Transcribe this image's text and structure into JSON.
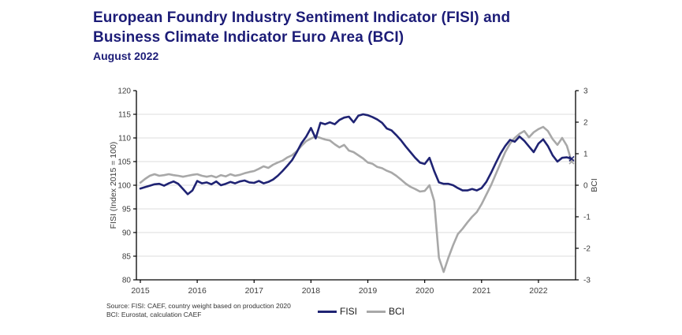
{
  "header": {
    "title_line1": "European Foundry Industry Sentiment Indicator (FISI) and",
    "title_line2": "Business Climate Indicator Euro Area (BCI)",
    "subtitle": "August 2022"
  },
  "chart_data": {
    "type": "line",
    "x_unit": "month",
    "x_start": "2015-01",
    "x_end": "2022-08",
    "x_tick_labels": [
      "2015",
      "2016",
      "2017",
      "2018",
      "2019",
      "2020",
      "2021",
      "2022"
    ],
    "grid": "horizontal",
    "grid_color": "#dcdcdc",
    "axis_color": "#000000",
    "left_axis": {
      "label": "FISI (Index 2015 = 100)",
      "min": 80,
      "max": 120,
      "step": 5
    },
    "right_axis": {
      "label": "BCI",
      "min": -3,
      "max": 3,
      "step": 1
    },
    "legend_position": "bottom",
    "series": [
      {
        "name": "FISI",
        "axis": "left",
        "color": "#1f2373",
        "values": [
          99.3,
          99.6,
          99.9,
          100.2,
          100.3,
          99.9,
          100.4,
          100.8,
          100.3,
          99.2,
          98.1,
          98.9,
          100.9,
          100.4,
          100.6,
          100.2,
          100.8,
          100.0,
          100.3,
          100.7,
          100.4,
          100.8,
          101.0,
          100.6,
          100.5,
          100.9,
          100.4,
          100.7,
          101.2,
          102.0,
          103.0,
          104.1,
          105.3,
          107.0,
          108.9,
          110.3,
          112.1,
          109.9,
          113.2,
          112.9,
          113.3,
          112.9,
          113.8,
          114.3,
          114.5,
          113.3,
          114.7,
          115.0,
          114.8,
          114.4,
          113.9,
          113.2,
          112.0,
          111.6,
          110.6,
          109.5,
          108.2,
          107.0,
          105.8,
          104.8,
          104.5,
          105.8,
          103.0,
          100.6,
          100.3,
          100.3,
          100.0,
          99.4,
          98.9,
          98.9,
          99.2,
          98.9,
          99.4,
          100.7,
          102.6,
          104.7,
          106.7,
          108.3,
          109.6,
          109.2,
          110.3,
          109.4,
          108.2,
          107.0,
          108.8,
          109.7,
          108.3,
          106.3,
          105.0,
          105.8,
          105.9,
          105.6
        ]
      },
      {
        "name": "BCI",
        "axis": "right",
        "color": "#a8a8a8",
        "values": [
          0.08,
          0.2,
          0.3,
          0.35,
          0.3,
          0.32,
          0.35,
          0.32,
          0.3,
          0.27,
          0.3,
          0.33,
          0.35,
          0.3,
          0.27,
          0.3,
          0.25,
          0.32,
          0.28,
          0.35,
          0.3,
          0.33,
          0.38,
          0.42,
          0.45,
          0.52,
          0.6,
          0.55,
          0.65,
          0.72,
          0.78,
          0.88,
          0.95,
          1.08,
          1.25,
          1.4,
          1.48,
          1.55,
          1.5,
          1.45,
          1.42,
          1.3,
          1.2,
          1.28,
          1.1,
          1.05,
          0.95,
          0.85,
          0.72,
          0.68,
          0.58,
          0.54,
          0.46,
          0.4,
          0.3,
          0.18,
          0.05,
          -0.05,
          -0.12,
          -0.2,
          -0.18,
          0.0,
          -0.5,
          -2.3,
          -2.75,
          -2.3,
          -1.9,
          -1.55,
          -1.38,
          -1.18,
          -1.0,
          -0.85,
          -0.6,
          -0.3,
          0.0,
          0.35,
          0.7,
          1.05,
          1.32,
          1.5,
          1.63,
          1.72,
          1.52,
          1.68,
          1.78,
          1.85,
          1.72,
          1.46,
          1.28,
          1.5,
          1.25,
          0.75
        ]
      }
    ]
  },
  "footer": {
    "source_line1": "Source: FISI: CAEF, country weight based on production 2020",
    "source_line2": "BCI: Eurostat, calculation CAEF"
  }
}
